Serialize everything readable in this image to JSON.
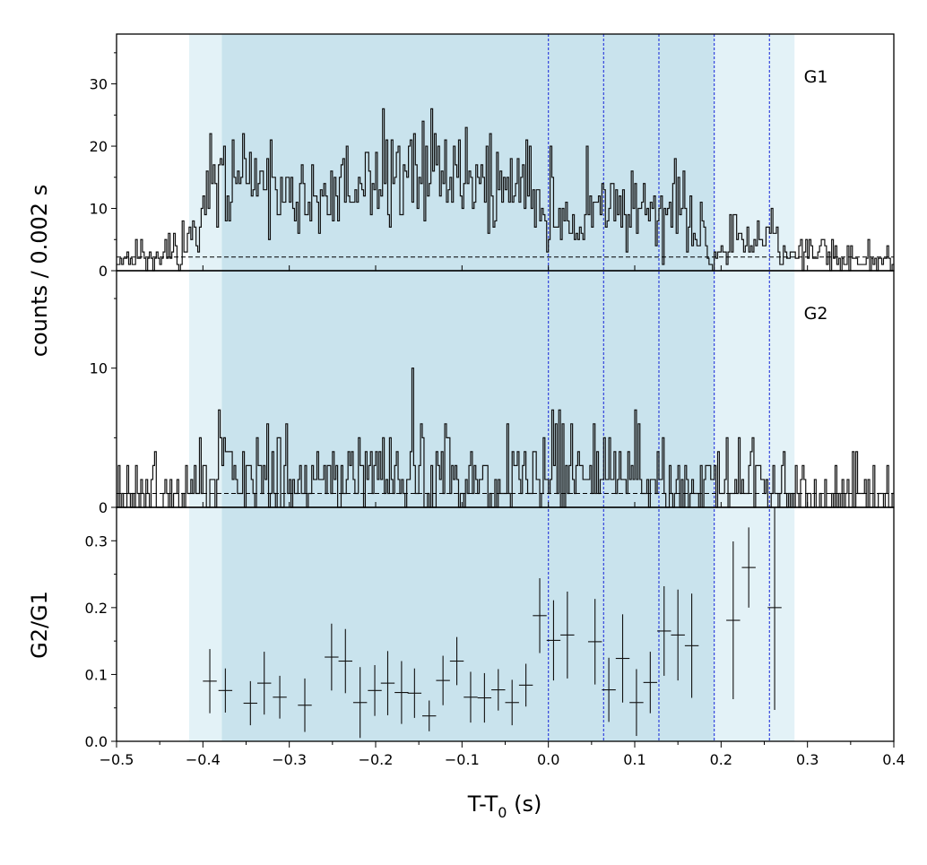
{
  "chart_data": {
    "type": "line",
    "layout": "stacked-panels",
    "xlabel_main": "T-T",
    "xlabel_sub": "0",
    "xlabel_unit": " (s)",
    "shared_ylabel": "counts /  0.002 s",
    "xlim": [
      -0.5,
      0.4
    ],
    "xticks": [
      "−0.5",
      "−0.4",
      "−0.3",
      "−0.2",
      "−0.1",
      "0.0",
      "0.1",
      "0.2",
      "0.3",
      "0.4"
    ],
    "xtick_values": [
      -0.5,
      -0.4,
      -0.3,
      -0.2,
      -0.1,
      0.0,
      0.1,
      0.2,
      0.3,
      0.4
    ],
    "shaded_intervals": [
      {
        "start": -0.416,
        "end": 0.285,
        "color": "#e3f2f7"
      },
      {
        "start": -0.378,
        "end": 0.192,
        "color": "#c9e3ed"
      }
    ],
    "vertical_lines": [
      0.0,
      0.064,
      0.128,
      0.192,
      0.256
    ],
    "vline_color": "#3344dd",
    "bin_width": 0.002,
    "panels": [
      {
        "label": "G1",
        "ylim": [
          0,
          38
        ],
        "yticks": [
          "0",
          "10",
          "20",
          "30"
        ],
        "ytick_values": [
          0,
          10,
          20,
          30
        ],
        "background_level": 2.2,
        "anchors": [
          [
            -0.5,
            2
          ],
          [
            -0.44,
            3
          ],
          [
            -0.42,
            4
          ],
          [
            -0.4,
            10
          ],
          [
            -0.38,
            15
          ],
          [
            -0.35,
            13
          ],
          [
            -0.3,
            12
          ],
          [
            -0.25,
            13
          ],
          [
            -0.2,
            14
          ],
          [
            -0.15,
            15
          ],
          [
            -0.1,
            14
          ],
          [
            -0.05,
            14
          ],
          [
            -0.01,
            12
          ],
          [
            0.0,
            8
          ],
          [
            0.03,
            8
          ],
          [
            0.064,
            11
          ],
          [
            0.1,
            10
          ],
          [
            0.128,
            10
          ],
          [
            0.16,
            8
          ],
          [
            0.18,
            6
          ],
          [
            0.19,
            3
          ],
          [
            0.22,
            6
          ],
          [
            0.26,
            5
          ],
          [
            0.285,
            4
          ],
          [
            0.3,
            2
          ],
          [
            0.4,
            2
          ]
        ],
        "spikes": [
          [
            -0.39,
            22
          ],
          [
            -0.353,
            22
          ],
          [
            -0.321,
            21
          ],
          [
            -0.234,
            20
          ],
          [
            -0.182,
            21
          ],
          [
            -0.155,
            22
          ],
          [
            -0.136,
            26
          ],
          [
            -0.119,
            21
          ],
          [
            -0.025,
            21
          ],
          [
            0.003,
            20
          ],
          [
            0.044,
            20
          ],
          [
            0.157,
            16
          ],
          [
            0.187,
            1
          ]
        ],
        "noise_seed": 11
      },
      {
        "label": "G2",
        "ylim": [
          0,
          17
        ],
        "yticks": [
          "0",
          "10"
        ],
        "ytick_values": [
          0,
          10
        ],
        "background_level": 1.0,
        "anchors": [
          [
            -0.5,
            1
          ],
          [
            -0.42,
            1
          ],
          [
            -0.4,
            2.4
          ],
          [
            -0.3,
            2.3
          ],
          [
            -0.2,
            2.4
          ],
          [
            -0.1,
            2.5
          ],
          [
            0.0,
            2.4
          ],
          [
            0.1,
            2.3
          ],
          [
            0.18,
            2.0
          ],
          [
            0.22,
            1.5
          ],
          [
            0.285,
            1.2
          ],
          [
            0.3,
            0.8
          ],
          [
            0.4,
            1
          ]
        ],
        "spikes": [
          [
            0.005,
            7
          ],
          [
            0.009,
            6
          ],
          [
            -0.145,
            5
          ],
          [
            -0.005,
            5
          ],
          [
            0.065,
            5
          ],
          [
            0.133,
            5
          ],
          [
            0.22,
            5
          ],
          [
            0.237,
            5
          ]
        ],
        "noise_seed": 29
      }
    ],
    "ratio_panel": {
      "ylabel": "G2/G1",
      "ylim": [
        0.0,
        0.35
      ],
      "yticks": [
        "0.0",
        "0.1",
        "0.2",
        "0.3"
      ],
      "ytick_values": [
        0.0,
        0.1,
        0.2,
        0.3
      ],
      "xerr": 0.008,
      "points": [
        {
          "x": -0.392,
          "y": 0.09,
          "err": 0.048
        },
        {
          "x": -0.374,
          "y": 0.076,
          "err": 0.033
        },
        {
          "x": -0.345,
          "y": 0.057,
          "err": 0.033
        },
        {
          "x": -0.329,
          "y": 0.087,
          "err": 0.047
        },
        {
          "x": -0.311,
          "y": 0.066,
          "err": 0.032
        },
        {
          "x": -0.282,
          "y": 0.054,
          "err": 0.04
        },
        {
          "x": -0.251,
          "y": 0.126,
          "err": 0.05
        },
        {
          "x": -0.235,
          "y": 0.12,
          "err": 0.048
        },
        {
          "x": -0.218,
          "y": 0.058,
          "err": 0.053
        },
        {
          "x": -0.201,
          "y": 0.076,
          "err": 0.038
        },
        {
          "x": -0.186,
          "y": 0.087,
          "err": 0.048
        },
        {
          "x": -0.17,
          "y": 0.073,
          "err": 0.047
        },
        {
          "x": -0.155,
          "y": 0.072,
          "err": 0.037
        },
        {
          "x": -0.138,
          "y": 0.038,
          "err": 0.023
        },
        {
          "x": -0.122,
          "y": 0.091,
          "err": 0.037
        },
        {
          "x": -0.106,
          "y": 0.12,
          "err": 0.036
        },
        {
          "x": -0.09,
          "y": 0.066,
          "err": 0.038
        },
        {
          "x": -0.074,
          "y": 0.065,
          "err": 0.037
        },
        {
          "x": -0.058,
          "y": 0.077,
          "err": 0.031
        },
        {
          "x": -0.042,
          "y": 0.058,
          "err": 0.034
        },
        {
          "x": -0.026,
          "y": 0.084,
          "err": 0.032
        },
        {
          "x": -0.01,
          "y": 0.188,
          "err": 0.056
        },
        {
          "x": 0.006,
          "y": 0.151,
          "err": 0.06
        },
        {
          "x": 0.022,
          "y": 0.159,
          "err": 0.065
        },
        {
          "x": 0.054,
          "y": 0.149,
          "err": 0.064
        },
        {
          "x": 0.07,
          "y": 0.077,
          "err": 0.048
        },
        {
          "x": 0.086,
          "y": 0.124,
          "err": 0.066
        },
        {
          "x": 0.102,
          "y": 0.058,
          "err": 0.05
        },
        {
          "x": 0.118,
          "y": 0.088,
          "err": 0.046
        },
        {
          "x": 0.134,
          "y": 0.165,
          "err": 0.067
        },
        {
          "x": 0.15,
          "y": 0.159,
          "err": 0.068
        },
        {
          "x": 0.166,
          "y": 0.143,
          "err": 0.078
        },
        {
          "x": 0.214,
          "y": 0.181,
          "err": 0.118
        },
        {
          "x": 0.232,
          "y": 0.26,
          "err": 0.06
        },
        {
          "x": 0.262,
          "y": 0.2,
          "err": 0.153
        }
      ]
    }
  }
}
